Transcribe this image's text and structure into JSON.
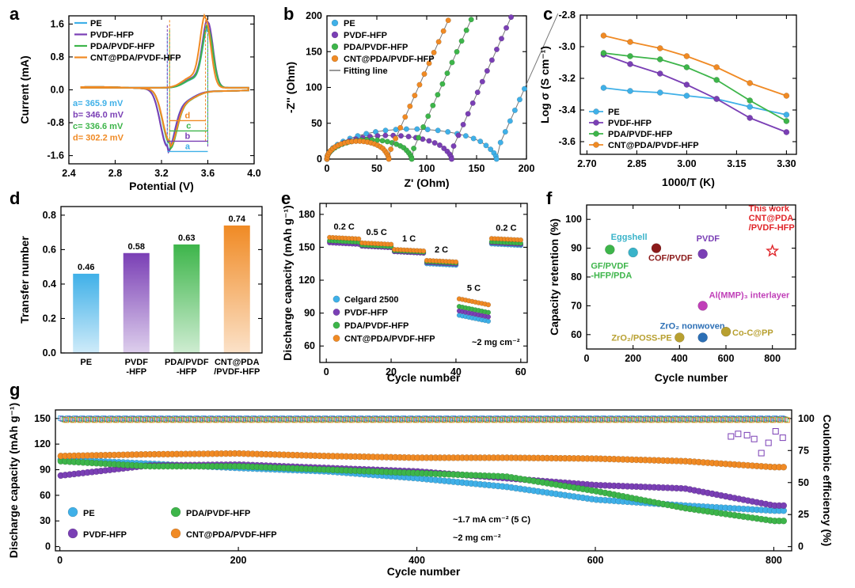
{
  "colors": {
    "PE": "#3fb0e8",
    "PVDF-HFP": "#7a3fb5",
    "PDA/PVDF-HFP": "#3db54a",
    "CNT@PDA/PVDF-HFP": "#f08a24",
    "fit": "#777777",
    "thiswork": "#e0262a",
    "othergold": "#b8a030",
    "cof": "#8b1a1a",
    "magenta": "#c03fb8",
    "znblue": "#2c6fb5",
    "eggshell": "#39b3c9"
  },
  "chart_data": [
    {
      "id": "a",
      "type": "line",
      "panel_label": "a",
      "xlabel": "Potential (V)",
      "ylabel": "Current (mA)",
      "xlim": [
        2.4,
        4.0
      ],
      "ylim": [
        -1.8,
        1.8
      ],
      "xticks": [
        "2.4",
        "2.8",
        "3.2",
        "3.6",
        "4.0"
      ],
      "yticks": [
        "-1.6",
        "-0.8",
        "0.0",
        "0.8",
        "1.6"
      ],
      "legend": [
        "PE",
        "PVDF-HFP",
        "PDA/PVDF-HFP",
        "CNT@PDA/PVDF-HFP"
      ],
      "legend_position": "top-left",
      "series": [
        {
          "name": "PE",
          "cathodic_peak": [
            3.25,
            -1.35
          ],
          "anodic_peak": [
            3.6,
            1.38
          ],
          "separation_mV": 365.9
        },
        {
          "name": "PVDF-HFP",
          "cathodic_peak": [
            3.25,
            -1.38
          ],
          "anodic_peak": [
            3.6,
            1.6
          ],
          "separation_mV": 346.0
        },
        {
          "name": "PDA/PVDF-HFP",
          "cathodic_peak": [
            3.27,
            -1.3
          ],
          "anodic_peak": [
            3.6,
            1.45
          ],
          "separation_mV": 336.6
        },
        {
          "name": "CNT@PDA/PVDF-HFP",
          "cathodic_peak": [
            3.27,
            -1.25
          ],
          "anodic_peak": [
            3.58,
            1.7
          ],
          "separation_mV": 302.2
        }
      ],
      "annotations": [
        "a= 365.9 mV",
        "b= 346.0 mV",
        "c= 336.6 mV",
        "d= 302.2 mV",
        "a",
        "b",
        "c",
        "d"
      ]
    },
    {
      "id": "b",
      "type": "scatter",
      "panel_label": "b",
      "xlabel": "Z' (Ohm)",
      "ylabel": "-Z'' (Ohm)",
      "xlim": [
        0,
        200
      ],
      "ylim": [
        0,
        200
      ],
      "xticks": [
        "0",
        "50",
        "100",
        "150",
        "200"
      ],
      "yticks": [
        "0",
        "50",
        "100",
        "150",
        "200"
      ],
      "legend": [
        "PE",
        "PVDF-HFP",
        "PDA/PVDF-HFP",
        "CNT@PDA/PVDF-HFP",
        "Fitting line"
      ],
      "legend_position": "top-left",
      "series": [
        {
          "name": "PE",
          "semicircle_end": 170,
          "arc_height": 42,
          "tail_start": 172
        },
        {
          "name": "PVDF-HFP",
          "semicircle_end": 125,
          "arc_height": 33,
          "tail_start": 125
        },
        {
          "name": "PDA/PVDF-HFP",
          "semicircle_end": 85,
          "arc_height": 27,
          "tail_start": 85
        },
        {
          "name": "CNT@PDA/PVDF-HFP",
          "semicircle_end": 62,
          "arc_height": 25,
          "tail_start": 62
        }
      ]
    },
    {
      "id": "c",
      "type": "line",
      "panel_label": "c",
      "xlabel": "1000/T (K)",
      "ylabel": "Log σ (S cm⁻¹)",
      "xlim": [
        2.68,
        3.33
      ],
      "ylim": [
        -3.68,
        -2.8
      ],
      "xticks": [
        "2.70",
        "2.85",
        "3.00",
        "3.15",
        "3.30"
      ],
      "yticks": [
        "-2.8",
        "-3.0",
        "-3.2",
        "-3.4",
        "-3.6"
      ],
      "x": [
        2.75,
        2.83,
        2.92,
        3.0,
        3.09,
        3.19,
        3.3
      ],
      "legend": [
        "PE",
        "PVDF-HFP",
        "PDA/PVDF-HFP",
        "CNT@PDA/PVDF-HFP"
      ],
      "legend_position": "bottom-left",
      "series": [
        {
          "name": "PE",
          "values": [
            -3.26,
            -3.28,
            -3.29,
            -3.31,
            -3.33,
            -3.38,
            -3.43
          ]
        },
        {
          "name": "PVDF-HFP",
          "values": [
            -3.05,
            -3.11,
            -3.17,
            -3.24,
            -3.33,
            -3.45,
            -3.54
          ]
        },
        {
          "name": "PDA/PVDF-HFP",
          "values": [
            -3.04,
            -3.06,
            -3.08,
            -3.13,
            -3.21,
            -3.34,
            -3.47
          ]
        },
        {
          "name": "CNT@PDA/PVDF-HFP",
          "values": [
            -2.93,
            -2.97,
            -3.01,
            -3.06,
            -3.13,
            -3.23,
            -3.31
          ]
        }
      ]
    },
    {
      "id": "d",
      "type": "bar",
      "panel_label": "d",
      "xlabel": "",
      "ylabel": "Transfer number",
      "ylim": [
        0,
        0.85
      ],
      "yticks": [
        "0.0",
        "0.2",
        "0.4",
        "0.6",
        "0.8"
      ],
      "categories": [
        "PE",
        "PVDF\n-HFP",
        "PDA/PVDF\n-HFP",
        "CNT@PDA\n/PVDF-HFP"
      ],
      "values": [
        0.46,
        0.58,
        0.63,
        0.74
      ],
      "labels": [
        "0.46",
        "0.58",
        "0.63",
        "0.74"
      ]
    },
    {
      "id": "e",
      "type": "scatter",
      "panel_label": "e",
      "xlabel": "Cycle number",
      "ylabel": "Discharge capacity (mAh g⁻¹)",
      "xlim": [
        -2,
        62
      ],
      "ylim": [
        45,
        190
      ],
      "xticks": [
        "0",
        "20",
        "40",
        "60"
      ],
      "yticks": [
        "60",
        "90",
        "120",
        "150",
        "180"
      ],
      "rate_labels": [
        "0.2 C",
        "0.5 C",
        "1 C",
        "2 C",
        "5 C",
        "0.2 C"
      ],
      "annotation": "~2 mg cm⁻²",
      "legend": [
        "Celgard 2500",
        "PVDF-HFP",
        "PDA/PVDF-HFP",
        "CNT@PDA/PVDF-HFP"
      ],
      "legend_position": "bottom-left",
      "series": [
        {
          "name": "Celgard 2500",
          "segments": [
            155,
            151,
            146,
            135,
            88,
            153
          ]
        },
        {
          "name": "PVDF-HFP",
          "segments": [
            154,
            151,
            146,
            136,
            92,
            154
          ]
        },
        {
          "name": "PDA/PVDF-HFP",
          "segments": [
            156,
            152,
            147,
            137,
            96,
            155
          ]
        },
        {
          "name": "CNT@PDA/PVDF-HFP",
          "segments": [
            159,
            154,
            148,
            138,
            103,
            158
          ]
        }
      ]
    },
    {
      "id": "f",
      "type": "scatter",
      "panel_label": "f",
      "xlabel": "Cycle number",
      "ylabel": "Capacity retention (%)",
      "xlim": [
        0,
        900
      ],
      "ylim": [
        55,
        105
      ],
      "xticks": [
        "0",
        "200",
        "400",
        "600",
        "800"
      ],
      "yticks": [
        "60",
        "70",
        "80",
        "90",
        "100"
      ],
      "points": [
        {
          "label": "GF/PVDF\n-HFP/PDA",
          "x": 100,
          "y": 89.5
        },
        {
          "label": "Eggshell",
          "x": 200,
          "y": 88.5
        },
        {
          "label": "COF/PVDF",
          "x": 300,
          "y": 90
        },
        {
          "label": "PVDF",
          "x": 500,
          "y": 88
        },
        {
          "label": "Al(MMP)₃ interlayer",
          "x": 500,
          "y": 70
        },
        {
          "label": "ZrO₂ nonwoven",
          "x": 500,
          "y": 59
        },
        {
          "label": "ZrO₂/POSS-PE",
          "x": 400,
          "y": 59
        },
        {
          "label": "Co-C@PP",
          "x": 600,
          "y": 61
        },
        {
          "label": "This work\nCNT@PDA\n/PVDF-HFP",
          "x": 800,
          "y": 89
        }
      ]
    },
    {
      "id": "g",
      "type": "scatter",
      "panel_label": "g",
      "xlabel": "Cycle number",
      "ylabel": "Discharge capacity (mAh g⁻¹)",
      "ylabel2": "Coulombic efficiency (%)",
      "xlim": [
        -5,
        820
      ],
      "ylim": [
        -5,
        160
      ],
      "ylim2": [
        -3.3,
        106.7
      ],
      "xticks": [
        "0",
        "200",
        "400",
        "600",
        "800"
      ],
      "yticks": [
        "0",
        "30",
        "60",
        "90",
        "120",
        "150"
      ],
      "yticks2": [
        "0",
        "25",
        "50",
        "75",
        "100"
      ],
      "annotations": [
        "~1.7 mA cm⁻² (5 C)",
        "~2 mg cm⁻²"
      ],
      "legend": [
        "PE",
        "PVDF-HFP",
        "PDA/PVDF-HFP",
        "CNT@PDA/PVDF-HFP"
      ],
      "legend_position": "bottom-left",
      "series": [
        {
          "name": "PE",
          "x": [
            0,
            100,
            200,
            300,
            400,
            500,
            600,
            700,
            800
          ],
          "values": [
            102,
            97,
            92,
            88,
            80,
            70,
            55,
            48,
            42
          ]
        },
        {
          "name": "PVDF-HFP",
          "x": [
            0,
            100,
            200,
            300,
            400,
            500,
            600,
            700,
            800
          ],
          "values": [
            83,
            95,
            96,
            92,
            88,
            80,
            72,
            68,
            48
          ]
        },
        {
          "name": "PDA/PVDF-HFP",
          "x": [
            0,
            100,
            200,
            300,
            400,
            500,
            600,
            700,
            800
          ],
          "values": [
            100,
            94,
            94,
            90,
            86,
            82,
            65,
            45,
            30
          ]
        },
        {
          "name": "CNT@PDA/PVDF-HFP",
          "x": [
            0,
            100,
            200,
            300,
            400,
            500,
            600,
            700,
            800
          ],
          "values": [
            106,
            108,
            109,
            106,
            104,
            104,
            103,
            100,
            93
          ]
        }
      ],
      "coulombic_efficiency": 99.5
    }
  ]
}
